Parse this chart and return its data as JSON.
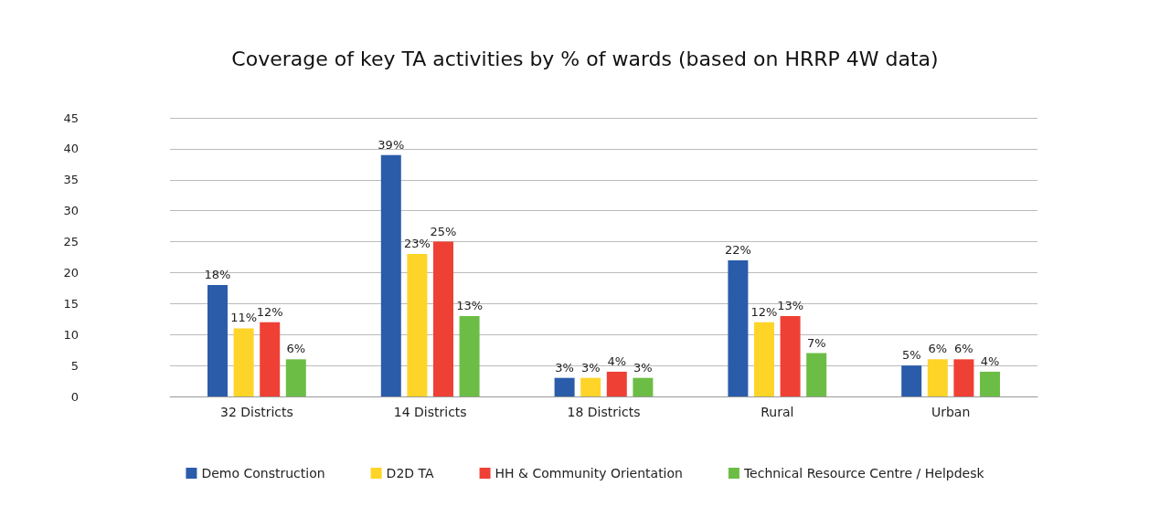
{
  "chart_data": {
    "type": "bar",
    "title": "Coverage of key TA activities by % of wards (based on HRRP 4W data)",
    "categories": [
      "32 Districts",
      "14 Districts",
      "18 Districts",
      "Rural",
      "Urban"
    ],
    "series": [
      {
        "name": "Demo Construction",
        "color": "#2a5caa",
        "values": [
          18,
          39,
          3,
          22,
          5
        ],
        "value_labels": [
          "18%",
          "39%",
          "3%",
          "22%",
          "5%"
        ]
      },
      {
        "name": "D2D TA",
        "color": "#ffd428",
        "values": [
          11,
          23,
          3,
          12,
          6
        ],
        "value_labels": [
          "11%",
          "23%",
          "3%",
          "12%",
          "6%"
        ]
      },
      {
        "name": "HH & Community Orientation",
        "color": "#ef4035",
        "values": [
          12,
          25,
          4,
          13,
          6
        ],
        "value_labels": [
          "12%",
          "25%",
          "4%",
          "13%",
          "6%"
        ]
      },
      {
        "name": "Technical Resource Centre / Helpdesk",
        "color": "#6cbd45",
        "values": [
          6,
          13,
          3,
          7,
          4
        ],
        "value_labels": [
          "6%",
          "13%",
          "3%",
          "7%",
          "4%"
        ]
      }
    ],
    "ylim": [
      0,
      45
    ],
    "yticks": [
      0,
      5,
      10,
      15,
      20,
      25,
      30,
      35,
      40,
      45
    ],
    "grid": "y",
    "legend": "bottom"
  }
}
